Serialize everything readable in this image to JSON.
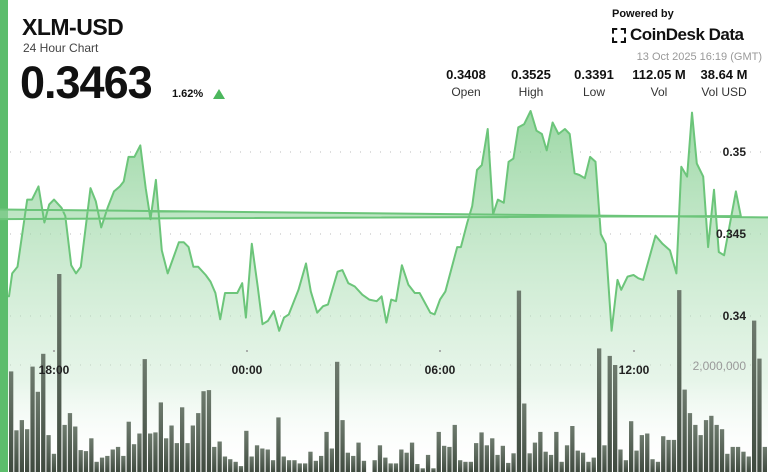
{
  "header": {
    "title": "XLM-USD",
    "subtitle": "24 Hour Chart",
    "price": "0.3463",
    "change": "1.62%",
    "change_direction": "up",
    "powered_by": "Powered by",
    "brand": "CoinDesk Data",
    "timestamp": "13 Oct 2025 16:19 (GMT)"
  },
  "stats": [
    {
      "value": "0.3408",
      "label": "Open"
    },
    {
      "value": "0.3525",
      "label": "High"
    },
    {
      "value": "0.3391",
      "label": "Low"
    },
    {
      "value": "112.05 M",
      "label": "Vol"
    },
    {
      "value": "38.64 M",
      "label": "Vol USD"
    }
  ],
  "colors": {
    "accent": "#5cbd6c",
    "line": "#6cc57a",
    "volume": "#4f5a4f",
    "up": "#4cb75d"
  },
  "chart_data": {
    "type": "area",
    "grid": "dotted horizontal",
    "y_ticks": [
      "0.35",
      "0.345",
      "0.34"
    ],
    "volume_ticks": [
      "2,000,000"
    ],
    "x_ticks": [
      "18:00",
      "00:00",
      "06:00",
      "12:00"
    ],
    "ylim": [
      0.3361,
      0.3583
    ],
    "volume_lim": [
      0,
      4000000
    ],
    "price": {
      "x": [
        "16:36",
        "16:42",
        "16:52",
        "17:10",
        "17:19",
        "17:31",
        "17:42",
        "17:51",
        "18:00",
        "18:14",
        "18:21",
        "18:32",
        "18:41",
        "18:50",
        "19:08",
        "19:18",
        "19:28",
        "19:40",
        "19:52",
        "20:03",
        "20:10",
        "20:19",
        "20:30",
        "20:41",
        "20:51",
        "21:00",
        "21:10",
        "21:21",
        "21:32",
        "21:43",
        "21:53",
        "22:02",
        "22:11",
        "22:20",
        "22:29",
        "22:43",
        "22:52",
        "23:01",
        "23:10",
        "23:19",
        "23:28",
        "23:42",
        "23:51",
        "23:58",
        "00:09",
        "00:20",
        "00:29",
        "00:39",
        "00:50",
        "01:00",
        "01:09",
        "01:18",
        "01:36",
        "01:50",
        "01:59",
        "02:11",
        "02:22",
        "02:31",
        "02:49",
        "02:58",
        "03:09",
        "03:21",
        "03:35",
        "03:48",
        "04:02",
        "04:11",
        "04:20",
        "04:29",
        "04:38",
        "04:49",
        "05:01",
        "05:13",
        "05:22",
        "05:42",
        "05:50",
        "06:00",
        "06:10",
        "06:32",
        "06:39",
        "06:51",
        "07:00",
        "07:09",
        "07:18",
        "07:29",
        "07:39",
        "07:48",
        "07:59",
        "08:08",
        "08:17",
        "08:26",
        "08:37",
        "08:49",
        "09:00",
        "09:10",
        "09:19",
        "09:30",
        "09:41",
        "09:53",
        "10:02",
        "10:11",
        "10:20",
        "10:30",
        "10:40",
        "10:50",
        "11:00",
        "11:09",
        "11:20",
        "11:31",
        "11:38",
        "11:50",
        "12:01",
        "12:10",
        "12:19",
        "12:42",
        "12:55",
        "13:09",
        "13:21",
        "13:30",
        "13:41",
        "13:50",
        "13:59",
        "14:11",
        "14:20",
        "14:31",
        "14:40",
        "14:50",
        "15:12",
        "15:21",
        "15:31",
        "15:41",
        "15:50",
        "15:59",
        "16:10"
      ],
      "y": [
        0.3412,
        0.3426,
        0.343,
        0.3471,
        0.3471,
        0.3479,
        0.3457,
        0.3468,
        0.3471,
        0.3466,
        0.3461,
        0.3431,
        0.3426,
        0.343,
        0.3478,
        0.347,
        0.3454,
        0.3466,
        0.3476,
        0.3479,
        0.3482,
        0.3497,
        0.3497,
        0.3504,
        0.3478,
        0.3459,
        0.3483,
        0.344,
        0.3426,
        0.3436,
        0.3445,
        0.3445,
        0.3442,
        0.343,
        0.343,
        0.3425,
        0.3421,
        0.3414,
        0.3398,
        0.3414,
        0.3414,
        0.3414,
        0.342,
        0.3399,
        0.3444,
        0.3418,
        0.3395,
        0.3397,
        0.3403,
        0.3391,
        0.3399,
        0.3401,
        0.3416,
        0.3432,
        0.3415,
        0.3402,
        0.3406,
        0.3407,
        0.3427,
        0.3428,
        0.342,
        0.3418,
        0.3413,
        0.341,
        0.3409,
        0.3412,
        0.3396,
        0.341,
        0.3409,
        0.3431,
        0.3419,
        0.3414,
        0.3414,
        0.3402,
        0.3401,
        0.341,
        0.3415,
        0.3442,
        0.3442,
        0.3457,
        0.3467,
        0.3489,
        0.3492,
        0.3514,
        0.3462,
        0.3471,
        0.3469,
        0.3494,
        0.3496,
        0.3515,
        0.3517,
        0.3525,
        0.3513,
        0.3511,
        0.3501,
        0.3518,
        0.3511,
        0.3514,
        0.3511,
        0.3487,
        0.3486,
        0.3484,
        0.3497,
        0.3494,
        0.345,
        0.3444,
        0.3391,
        0.3422,
        0.3416,
        0.3424,
        0.3425,
        0.3423,
        0.3422,
        0.3449,
        0.3444,
        0.344,
        0.3426,
        0.3491,
        0.3485,
        0.3524,
        0.3493,
        0.3485,
        0.3442,
        0.3477,
        0.3439,
        0.3437,
        0.3476,
        0.3461,
        0.3459,
        0.3479,
        0.3457,
        0.3471,
        0.3465
      ]
    },
    "volume": [
      1880000,
      780000,
      970000,
      800000,
      1970000,
      1500000,
      2210000,
      690000,
      340000,
      3700000,
      880000,
      1100000,
      850000,
      410000,
      390000,
      630000,
      190000,
      270000,
      300000,
      420000,
      470000,
      300000,
      940000,
      520000,
      720000,
      2110000,
      720000,
      740000,
      1300000,
      630000,
      870000,
      540000,
      1210000,
      540000,
      870000,
      1100000,
      1510000,
      1530000,
      470000,
      570000,
      290000,
      240000,
      190000,
      110000,
      770000,
      290000,
      500000,
      440000,
      420000,
      220000,
      1020000,
      290000,
      220000,
      220000,
      160000,
      160000,
      380000,
      210000,
      300000,
      750000,
      440000,
      2060000,
      970000,
      360000,
      300000,
      550000,
      210000,
      0,
      220000,
      500000,
      270000,
      160000,
      160000,
      420000,
      360000,
      550000,
      150000,
      70000,
      320000,
      70000,
      750000,
      490000,
      470000,
      880000,
      220000,
      190000,
      190000,
      540000,
      740000,
      500000,
      630000,
      320000,
      490000,
      170000,
      350000,
      3390000,
      1280000,
      350000,
      550000,
      750000,
      380000,
      320000,
      750000,
      190000,
      500000,
      860000,
      400000,
      360000,
      190000,
      270000,
      2310000,
      500000,
      2170000,
      2000000,
      420000,
      220000,
      950000,
      400000,
      690000,
      720000,
      240000,
      190000,
      670000,
      600000,
      600000,
      3400000,
      1540000,
      1100000,
      880000,
      690000,
      970000,
      1050000,
      880000,
      800000,
      340000,
      470000,
      470000,
      380000,
      290000,
      2830000,
      2120000,
      470000
    ]
  }
}
